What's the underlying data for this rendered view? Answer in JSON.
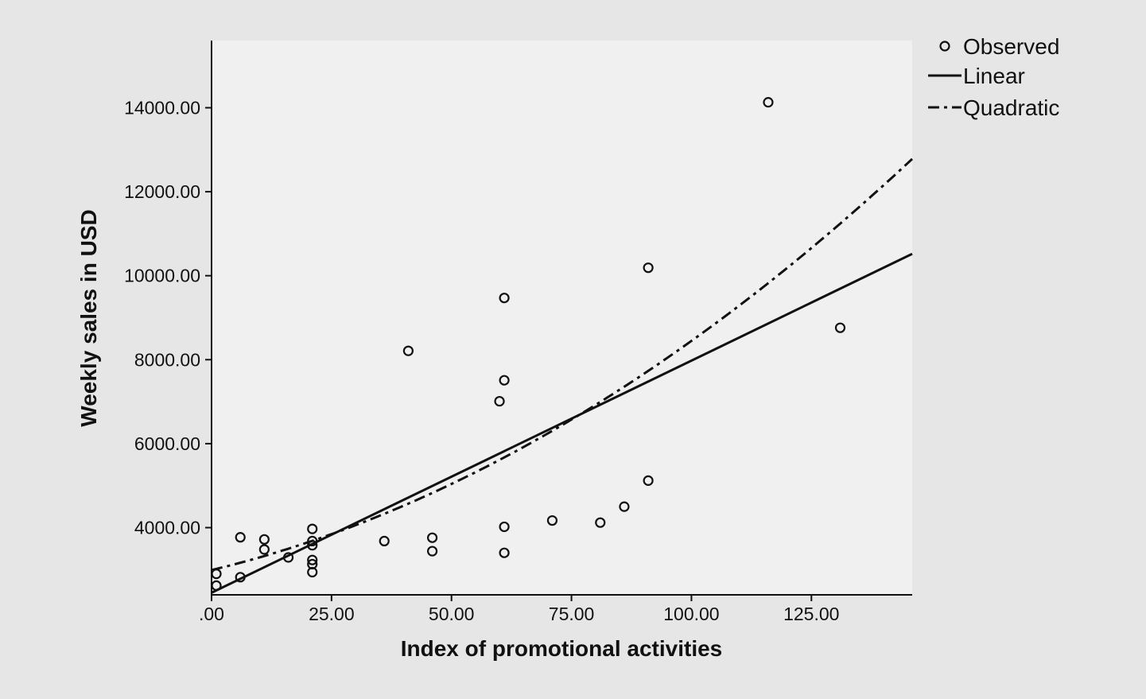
{
  "chart_data": {
    "type": "scatter",
    "xlabel": "Index of promotional activities",
    "ylabel": "Weekly sales in USD",
    "xlim": [
      0,
      146
    ],
    "ylim": [
      2400,
      15600
    ],
    "x_ticks": [
      ".00",
      "25.00",
      "50.00",
      "75.00",
      "100.00",
      "125.00"
    ],
    "x_tick_values": [
      0,
      25,
      50,
      75,
      100,
      125
    ],
    "y_ticks": [
      "4000.00",
      "6000.00",
      "8000.00",
      "10000.00",
      "12000.00",
      "14000.00"
    ],
    "y_tick_values": [
      4000,
      6000,
      8000,
      10000,
      12000,
      14000
    ],
    "grid": false,
    "legend_position": "top-right",
    "legend": {
      "observed": "Observed",
      "linear": "Linear",
      "quadratic": "Quadratic"
    },
    "series": [
      {
        "name": "Observed",
        "kind": "points",
        "points": [
          [
            1,
            2620
          ],
          [
            1,
            2900
          ],
          [
            6,
            2820
          ],
          [
            6,
            3770
          ],
          [
            11,
            3480
          ],
          [
            11,
            3720
          ],
          [
            16,
            3290
          ],
          [
            21,
            3680
          ],
          [
            21,
            3580
          ],
          [
            21,
            3970
          ],
          [
            21,
            3230
          ],
          [
            21,
            3130
          ],
          [
            21,
            2940
          ],
          [
            36,
            3680
          ],
          [
            41,
            8210
          ],
          [
            46,
            3760
          ],
          [
            46,
            3440
          ],
          [
            60,
            7010
          ],
          [
            61,
            9470
          ],
          [
            61,
            7510
          ],
          [
            61,
            4020
          ],
          [
            61,
            3400
          ],
          [
            71,
            4170
          ],
          [
            81,
            4120
          ],
          [
            86,
            4500
          ],
          [
            91,
            10190
          ],
          [
            91,
            5120
          ],
          [
            116,
            14130
          ],
          [
            131,
            8760
          ]
        ]
      },
      {
        "name": "Linear",
        "kind": "line",
        "points": [
          [
            0,
            2450
          ],
          [
            146,
            10520
          ]
        ]
      },
      {
        "name": "Quadratic",
        "kind": "curve",
        "coefficients": {
          "a": 2990,
          "b": 27.43,
          "c": 0.2714
        }
      }
    ]
  }
}
